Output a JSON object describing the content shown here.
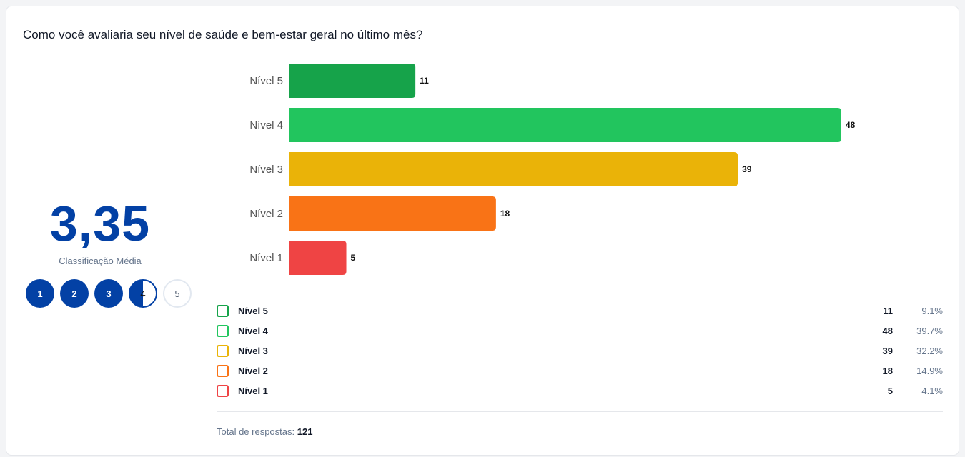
{
  "title": "Como você avaliaria seu nível de saúde e bem-estar geral no último mês?",
  "summary": {
    "average": "3,35",
    "average_label": "Classificação Média",
    "scale": [
      "1",
      "2",
      "3",
      "4",
      "5"
    ]
  },
  "total": {
    "label": "Total de respostas:",
    "value": "121"
  },
  "chart_data": {
    "type": "bar",
    "orientation": "horizontal",
    "categories": [
      "Nível 5",
      "Nível 4",
      "Nível 3",
      "Nível 2",
      "Nível 1"
    ],
    "values": [
      11,
      48,
      39,
      18,
      5
    ],
    "percentages": [
      "9.1%",
      "39.7%",
      "32.2%",
      "14.9%",
      "4.1%"
    ],
    "colors": [
      "#16a34a",
      "#22c55e",
      "#eab308",
      "#f97316",
      "#ef4444"
    ],
    "xlim": [
      0,
      48
    ]
  }
}
